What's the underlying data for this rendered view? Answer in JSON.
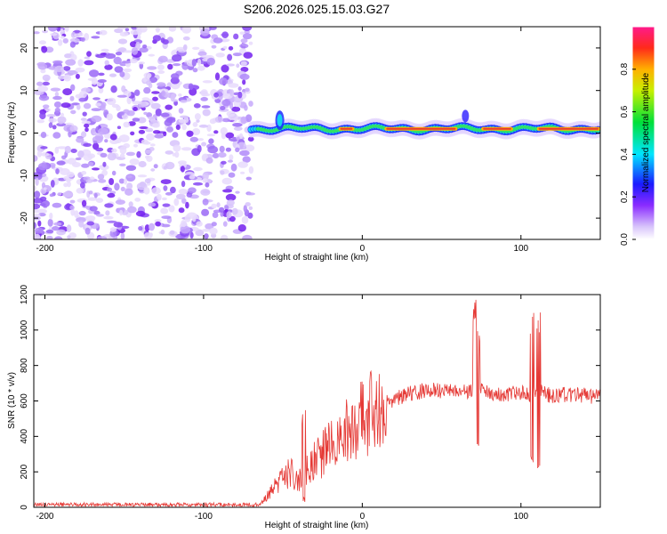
{
  "title": "S206.2026.025.15.03.G27",
  "colors": {
    "snr_line": "#e53935",
    "axis": "#000000",
    "noise_purple": "#7b2cf0",
    "band_core": "#e53935"
  },
  "chart_data": [
    {
      "type": "heatmap",
      "name": "spectrogram",
      "xlabel": "Height of straight line (km)",
      "ylabel": "Frequency (Hz)",
      "xlim": [
        -207,
        150
      ],
      "ylim": [
        -25,
        25
      ],
      "xticks": [
        -200,
        -100,
        0,
        100
      ],
      "yticks": [
        -20,
        -10,
        0,
        10,
        20
      ],
      "noise_region_x": [
        -207,
        -70
      ],
      "signal_region_x": [
        -70,
        150
      ],
      "signal_center_frequency_hz": 1,
      "colorbar": {
        "label": "Normalized spectral amplitude",
        "range": [
          0,
          1
        ],
        "ticks": [
          0.0,
          0.2,
          0.4,
          0.6,
          0.8
        ],
        "tick_labels": [
          "0.0",
          "0.2",
          "0.4",
          "0.6",
          "0.8"
        ]
      }
    },
    {
      "type": "line",
      "name": "snr",
      "xlabel": "Height of straight line (km)",
      "ylabel": "SNR (10 * v/v)",
      "xlim": [
        -207,
        150
      ],
      "ylim": [
        0,
        1200
      ],
      "xticks": [
        -200,
        -100,
        0,
        100
      ],
      "yticks": [
        0,
        200,
        400,
        600,
        800,
        1000,
        1200
      ],
      "series": [
        {
          "name": "SNR",
          "x": [
            -207,
            -150,
            -100,
            -65,
            -58,
            -52,
            -45,
            -40,
            -35,
            -30,
            -25,
            -20,
            -15,
            -10,
            -5,
            0,
            10,
            20,
            30,
            40,
            50,
            60,
            65,
            70,
            72,
            75,
            80,
            90,
            100,
            105,
            110,
            112,
            115,
            120,
            130,
            140,
            150
          ],
          "mean": [
            15,
            15,
            15,
            15,
            80,
            150,
            200,
            150,
            220,
            270,
            300,
            350,
            380,
            420,
            450,
            500,
            560,
            610,
            640,
            660,
            660,
            660,
            650,
            660,
            660,
            660,
            650,
            640,
            650,
            630,
            640,
            650,
            640,
            630,
            640,
            630,
            620
          ],
          "spikes": [
            {
              "x": -37,
              "min": 20,
              "max": 555
            },
            {
              "x": 71,
              "min": 310,
              "max": 1200
            },
            {
              "x": 73,
              "min": 330,
              "max": 1050
            },
            {
              "x": 107,
              "min": 250,
              "max": 1100
            },
            {
              "x": 111,
              "min": 210,
              "max": 1110
            }
          ]
        }
      ]
    }
  ]
}
